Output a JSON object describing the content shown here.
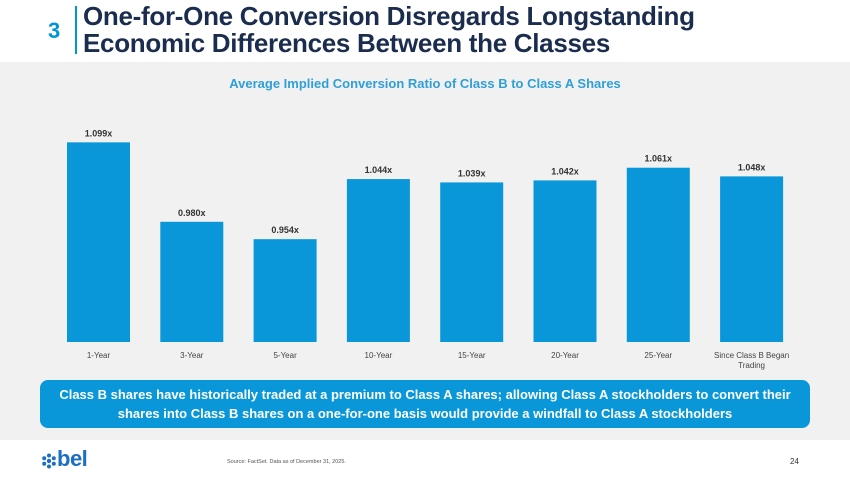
{
  "header": {
    "section_number": "3",
    "title_line1": "One-for-One Conversion Disregards Longstanding",
    "title_line2": "Economic Differences Between the Classes"
  },
  "chart_data": {
    "type": "bar",
    "title": "Average Implied Conversion Ratio of Class B to Class A Shares",
    "categories": [
      "1-Year",
      "3-Year",
      "5-Year",
      "10-Year",
      "15-Year",
      "20-Year",
      "25-Year",
      "Since Class B Began Trading"
    ],
    "category_lines": [
      [
        "1-Year"
      ],
      [
        "3-Year"
      ],
      [
        "5-Year"
      ],
      [
        "10-Year"
      ],
      [
        "15-Year"
      ],
      [
        "20-Year"
      ],
      [
        "25-Year"
      ],
      [
        "Since Class B Began",
        "Trading"
      ]
    ],
    "values": [
      1.099,
      0.98,
      0.954,
      1.044,
      1.039,
      1.042,
      1.061,
      1.048
    ],
    "data_labels": [
      "1.099x",
      "0.980x",
      "0.954x",
      "1.044x",
      "1.039x",
      "1.042x",
      "1.061x",
      "1.048x"
    ],
    "xlabel": "",
    "ylabel": "",
    "ylim": [
      0.8,
      1.11
    ],
    "grid": false,
    "bar_color": "#0a97d9"
  },
  "callout": {
    "line1": "Class B shares have historically traded at a premium to Class A shares; allowing Class A stockholders to convert their",
    "line2": "shares into Class B shares on a one-for-one basis would provide a windfall to Class A stockholders"
  },
  "footer": {
    "logo_text": "bel",
    "logo_icon": "bel-flower-icon",
    "source": "Source: FactSet. Data as of December 31, 2025.",
    "page_number": "24"
  }
}
